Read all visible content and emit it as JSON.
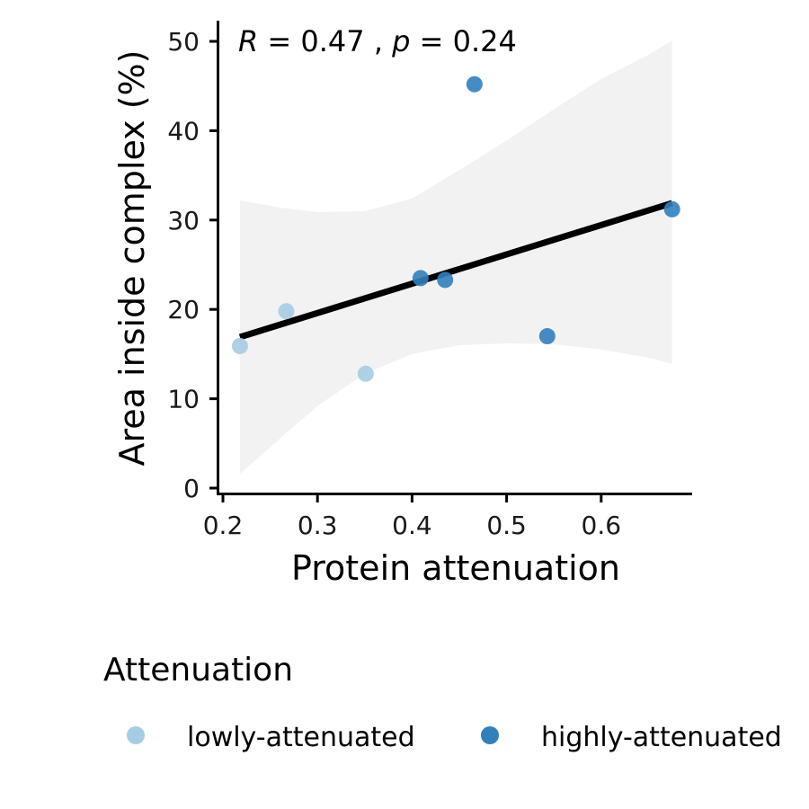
{
  "chart_data": {
    "type": "scatter",
    "xlabel": "Protein attenuation",
    "ylabel": "Area inside complex (%)",
    "xlim": [
      0.2,
      0.7
    ],
    "ylim": [
      0,
      52
    ],
    "x_ticks": [
      "0.2",
      "0.3",
      "0.4",
      "0.5",
      "0.6"
    ],
    "y_ticks": [
      "0",
      "10",
      "20",
      "30",
      "40",
      "50"
    ],
    "grid": false,
    "annotation": {
      "r_symbol": "R",
      "r_value": " = 0.47 , ",
      "p_symbol": "p",
      "p_value": " = 0.24"
    },
    "series": [
      {
        "name": "lowly-attenuated",
        "color": "#a6cce3",
        "points": [
          {
            "x": 0.218,
            "y": 15.9
          },
          {
            "x": 0.267,
            "y": 19.8
          },
          {
            "x": 0.351,
            "y": 12.8
          }
        ]
      },
      {
        "name": "highly-attenuated",
        "color": "#3080bd",
        "points": [
          {
            "x": 0.409,
            "y": 23.5
          },
          {
            "x": 0.435,
            "y": 23.3
          },
          {
            "x": 0.466,
            "y": 45.2
          },
          {
            "x": 0.543,
            "y": 17.0
          },
          {
            "x": 0.675,
            "y": 31.2
          }
        ]
      }
    ],
    "regression": {
      "x": [
        0.218,
        0.675
      ],
      "y": [
        16.9,
        31.9
      ],
      "color": "#000000"
    },
    "confidence_band": {
      "color": "#f2f2f2",
      "x": [
        0.218,
        0.26,
        0.3,
        0.35,
        0.4,
        0.45,
        0.5,
        0.55,
        0.6,
        0.65,
        0.675
      ],
      "lower": [
        1.6,
        5.5,
        9.2,
        12.8,
        15.0,
        16.0,
        16.2,
        16.1,
        15.5,
        14.6,
        13.9
      ],
      "upper": [
        32.2,
        31.4,
        30.9,
        31.0,
        32.4,
        35.6,
        38.9,
        42.4,
        45.8,
        48.5,
        50.1
      ]
    },
    "legend": {
      "title": "Attenuation",
      "position": "bottom"
    }
  }
}
